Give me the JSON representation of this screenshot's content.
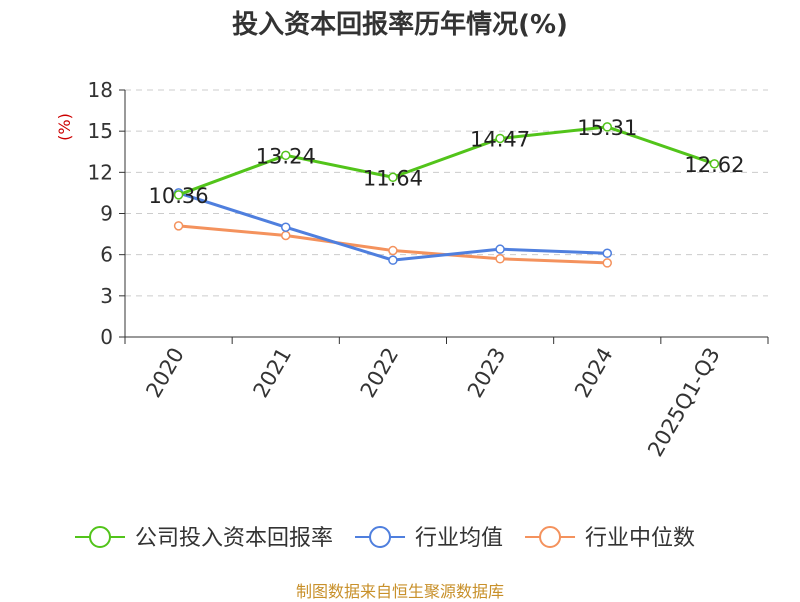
{
  "chart_data": {
    "type": "line",
    "title": "投入资本回报率历年情况(%)",
    "xlabel": "",
    "ylabel": "(%)",
    "categories": [
      "2020",
      "2021",
      "2022",
      "2023",
      "2024",
      "2025Q1-Q3"
    ],
    "ylim": [
      0,
      18
    ],
    "yticks": [
      0,
      3,
      6,
      9,
      12,
      15,
      18
    ],
    "grid": true,
    "legend_position": "bottom",
    "series": [
      {
        "name": "公司投入资本回报率",
        "color": "#52c41a",
        "values": [
          10.36,
          13.24,
          11.64,
          14.47,
          15.31,
          12.62
        ],
        "labels": [
          "10.36",
          "13.24",
          "11.64",
          "14.47",
          "15.31",
          "12.62"
        ]
      },
      {
        "name": "行业均值",
        "color": "#4f7fde",
        "values": [
          10.5,
          8.0,
          5.6,
          6.4,
          6.1,
          null
        ]
      },
      {
        "name": "行业中位数",
        "color": "#f4925d",
        "values": [
          8.1,
          7.4,
          6.3,
          5.7,
          5.4,
          null
        ]
      }
    ]
  },
  "footer": {
    "source": "制图数据来自恒生聚源数据库"
  }
}
